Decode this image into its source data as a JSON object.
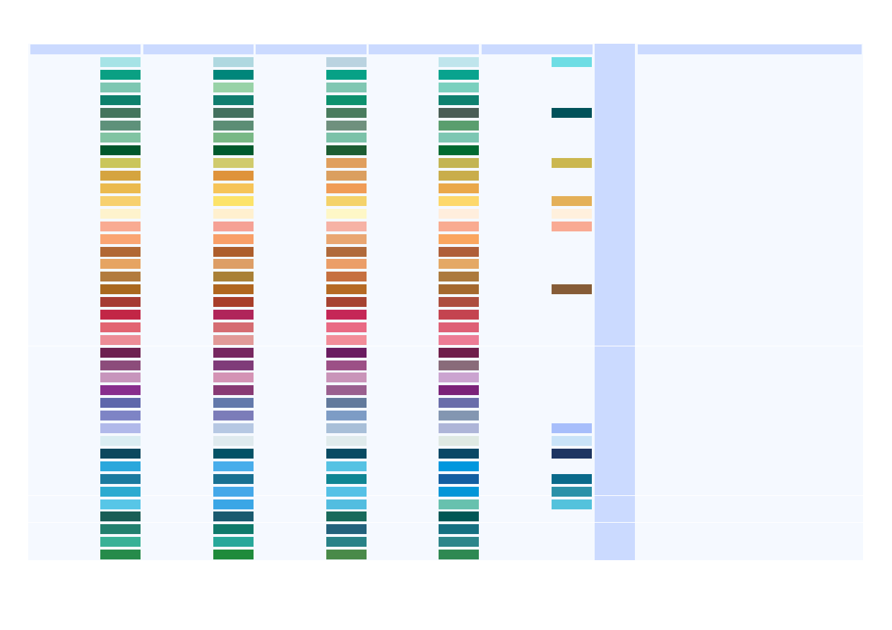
{
  "columns": [
    {
      "name": "swatch-column-1",
      "swatches": [
        "#a6e3e6",
        "#0aa083",
        "#7ec7b2",
        "#0e806c",
        "#44755d",
        "#5e917a",
        "#81c4a3",
        "#00572c",
        "#cac65b",
        "#d5a43f",
        "#ebba4e",
        "#f7d06e",
        "#fef3cd",
        "#f9ab92",
        "#faa573",
        "#b16834",
        "#e6a462",
        "#b27b3d",
        "#a9681f",
        "#a63b33",
        "#c22646",
        "#e26472",
        "#ec8d97",
        "#6d2150",
        "#8c4c7b",
        "#c795bc",
        "#882e8d",
        "#5e67ab",
        "#7e84c5",
        "#b1b9ea",
        "#daedf2",
        "#0c485e",
        "#2aa7dc",
        "#1b7a9f",
        "#2caad0",
        "#57c6e7",
        "#1a5e56",
        "#22806e",
        "#38b196",
        "#268b4a"
      ]
    },
    {
      "name": "swatch-column-2",
      "swatches": [
        "#afd8e0",
        "#00867a",
        "#98d2a7",
        "#107d6f",
        "#43715f",
        "#5c8d75",
        "#79b886",
        "#005a2d",
        "#d0cb6c",
        "#df933a",
        "#f6c458",
        "#fce36a",
        "#fff0cf",
        "#f5a195",
        "#f89f68",
        "#ad5e2c",
        "#dd9e66",
        "#a98036",
        "#b0661f",
        "#a83e2a",
        "#b0255a",
        "#d56c72",
        "#e19a98",
        "#762760",
        "#7f3b79",
        "#d493b5",
        "#883a74",
        "#6279ab",
        "#7b7cb9",
        "#b6c8e3",
        "#dfeaee",
        "#035266",
        "#48adeb",
        "#197092",
        "#45a8e9",
        "#3aa6e6",
        "#1a5a6f",
        "#107a6b",
        "#28a89a",
        "#1f8b3b"
      ]
    },
    {
      "name": "swatch-column-3",
      "swatches": [
        "#bad3e0",
        "#07a186",
        "#80c7b2",
        "#0d916e",
        "#497c5e",
        "#6f907e",
        "#7bc2a9",
        "#1d5d33",
        "#e09f5d",
        "#db9f5f",
        "#f09c56",
        "#f4d26a",
        "#fef7c7",
        "#f6b2a5",
        "#e9a671",
        "#b06a3b",
        "#eb9e68",
        "#c6703f",
        "#b56a24",
        "#a64332",
        "#c52757",
        "#e96a84",
        "#f28d99",
        "#6a1c61",
        "#9c5086",
        "#c994b9",
        "#9a608f",
        "#627a9c",
        "#7d9cc5",
        "#a8bfd8",
        "#e0ebec",
        "#084b63",
        "#55c2e3",
        "#0f8593",
        "#55c1e6",
        "#52bde0",
        "#186a5b",
        "#23627c",
        "#288287",
        "#498a49"
      ]
    },
    {
      "name": "swatch-column-4",
      "swatches": [
        "#bfe5ec",
        "#09a38e",
        "#7ad0be",
        "#0e816f",
        "#4a5e55",
        "#5a9e6e",
        "#7dc7b3",
        "#006a31",
        "#c3b553",
        "#c9ad4b",
        "#eaa849",
        "#fdd86b",
        "#ffeedd",
        "#f9ab91",
        "#faa65f",
        "#af5f3a",
        "#e4a865",
        "#ac7a3d",
        "#a4692f",
        "#ad4e3f",
        "#c44450",
        "#de6076",
        "#ec7c95",
        "#6f1e4b",
        "#896b7a",
        "#cba4d0",
        "#7b2379",
        "#696daa",
        "#8396b1",
        "#aeb5d8",
        "#dfe9e3",
        "#094866",
        "#0197de",
        "#135ea1",
        "#0396d8",
        "#67c1ae",
        "#005755",
        "#167081",
        "#2d868a",
        "#2e8952"
      ]
    },
    {
      "name": "swatch-column-5",
      "swatches": [
        "#6edde4",
        null,
        null,
        null,
        "#01525a",
        null,
        null,
        null,
        "#cbb74f",
        null,
        null,
        "#e4b058",
        "#fff0dd",
        "#f9aa93",
        null,
        null,
        null,
        null,
        "#865c37",
        null,
        null,
        null,
        null,
        null,
        null,
        null,
        null,
        null,
        null,
        "#a7befb",
        "#c9e3f8",
        "#1e3561",
        null,
        "#0a6a8b",
        "#2b91a8",
        "#54c2dc",
        null,
        null,
        null,
        null
      ]
    }
  ]
}
